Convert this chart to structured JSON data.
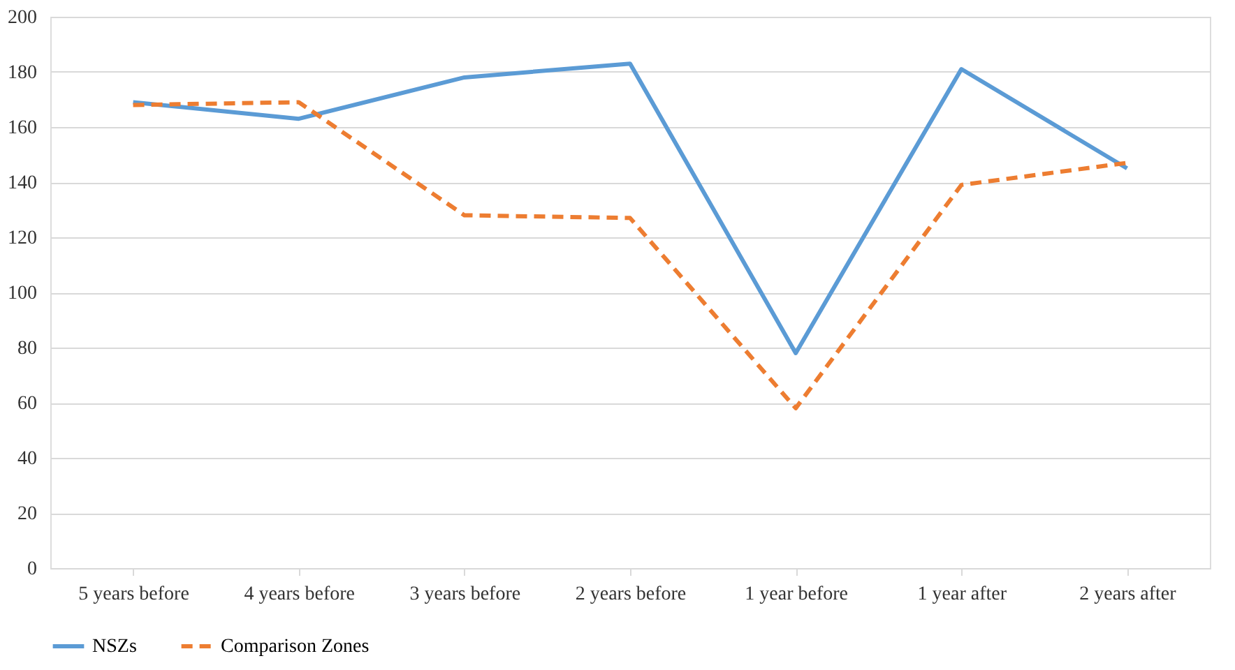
{
  "chart_data": {
    "type": "line",
    "categories": [
      "5 years before",
      "4 years before",
      "3 years before",
      "2 years before",
      "1 year before",
      "1 year after",
      "2 years after"
    ],
    "series": [
      {
        "name": "NSZs",
        "color": "#5b9bd5",
        "values": [
          169,
          163,
          178,
          183,
          78,
          181,
          145
        ],
        "line_style": "solid"
      },
      {
        "name": "Comparison Zones",
        "color": "#ed7d31",
        "values": [
          168,
          169,
          128,
          127,
          58,
          139,
          147
        ],
        "line_style": "dashed"
      }
    ],
    "ylim": [
      0,
      200
    ],
    "yticks": [
      0,
      20,
      40,
      60,
      80,
      100,
      120,
      140,
      160,
      180,
      200
    ],
    "grid": "y",
    "legend": "bottom",
    "marker": "none"
  }
}
